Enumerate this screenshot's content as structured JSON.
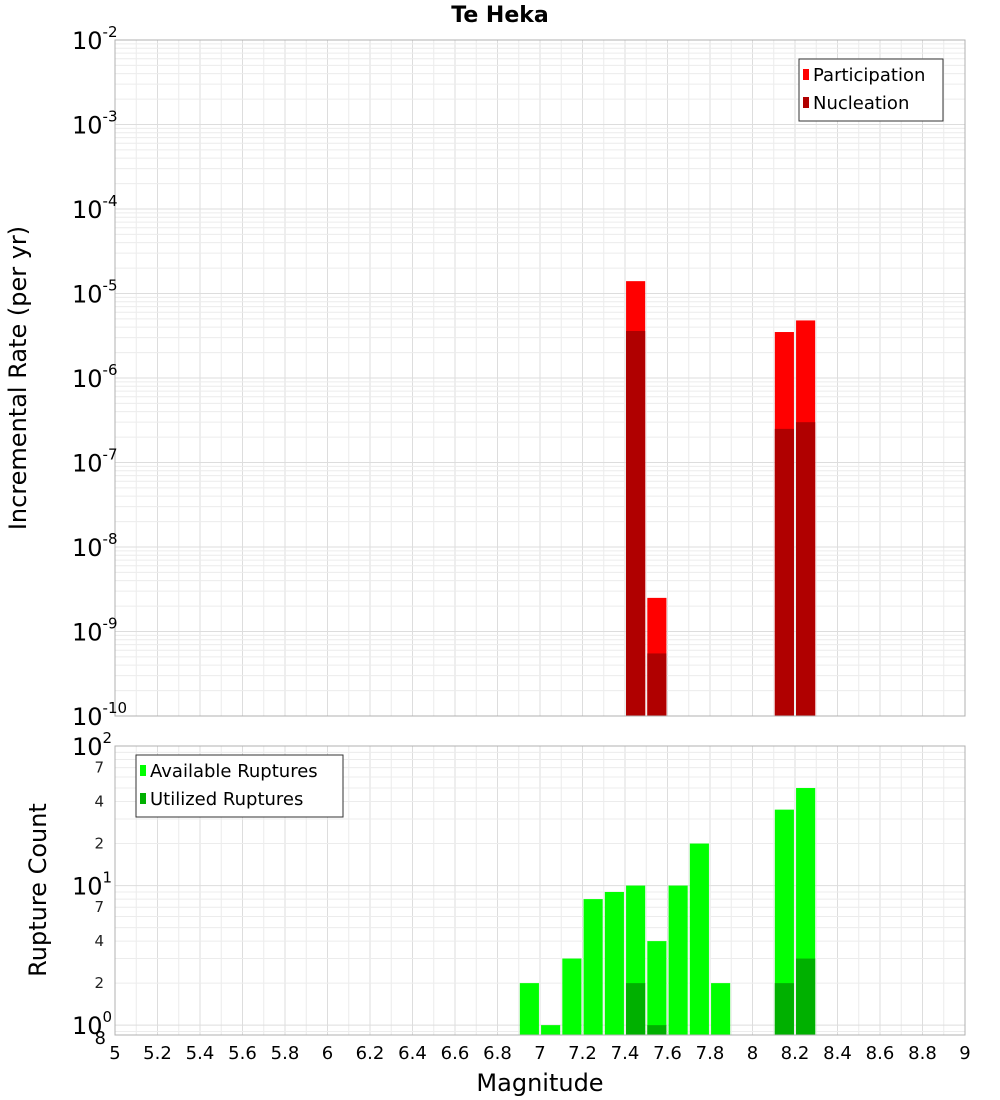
{
  "chart_data": [
    {
      "type": "bar",
      "title": "Te Heka",
      "xlabel": "",
      "ylabel": "Incremental Rate (per yr)",
      "yscale": "log",
      "xlim": [
        5,
        9
      ],
      "ylim": [
        1e-10,
        0.01
      ],
      "y_tick_labels": [
        {
          "base": "10",
          "exp": "-2"
        },
        {
          "base": "10",
          "exp": "-3"
        },
        {
          "base": "10",
          "exp": "-4"
        },
        {
          "base": "10",
          "exp": "-5"
        },
        {
          "base": "10",
          "exp": "-6"
        },
        {
          "base": "10",
          "exp": "-7"
        },
        {
          "base": "10",
          "exp": "-8"
        },
        {
          "base": "10",
          "exp": "-9"
        },
        {
          "base": "10",
          "exp": "-10"
        }
      ],
      "grid": true,
      "legend_position": "top-right",
      "bar_width": 0.09,
      "series": [
        {
          "name": "Participation",
          "color": "#ff0000",
          "points": [
            {
              "x": 7.45,
              "y": 1.4e-05
            },
            {
              "x": 7.55,
              "y": 2.5e-09
            },
            {
              "x": 8.15,
              "y": 3.5e-06
            },
            {
              "x": 8.25,
              "y": 4.8e-06
            }
          ]
        },
        {
          "name": "Nucleation",
          "color": "#b00000",
          "points": [
            {
              "x": 7.45,
              "y": 3.6e-06
            },
            {
              "x": 7.55,
              "y": 5.5e-10
            },
            {
              "x": 8.15,
              "y": 2.5e-07
            },
            {
              "x": 8.25,
              "y": 3e-07
            }
          ]
        }
      ]
    },
    {
      "type": "bar",
      "title": "",
      "xlabel": "Magnitude",
      "ylabel": "Rupture Count",
      "yscale": "log",
      "xlim": [
        5,
        9
      ],
      "ylim": [
        0.85,
        100
      ],
      "x_tick_labels": [
        "5",
        "5.2",
        "5.4",
        "5.6",
        "5.8",
        "6",
        "6.2",
        "6.4",
        "6.6",
        "6.8",
        "7",
        "7.2",
        "7.4",
        "7.6",
        "7.8",
        "8",
        "8.2",
        "8.4",
        "8.6",
        "8.8",
        "9"
      ],
      "y_major_labels": [
        {
          "value": 100,
          "base": "10",
          "exp": "2"
        },
        {
          "value": 10,
          "base": "10",
          "exp": "1"
        },
        {
          "value": 1,
          "base": "10",
          "exp": "0"
        }
      ],
      "y_minor_labels": [
        {
          "value": 70,
          "label": "7"
        },
        {
          "value": 40,
          "label": "4"
        },
        {
          "value": 20,
          "label": "2"
        },
        {
          "value": 7,
          "label": "7"
        },
        {
          "value": 4,
          "label": "4"
        },
        {
          "value": 2,
          "label": "2"
        },
        {
          "value": 0.85,
          "label": "8"
        }
      ],
      "grid": true,
      "legend_position": "top-left",
      "bar_width": 0.09,
      "series": [
        {
          "name": "Available Ruptures",
          "color": "#00ff00",
          "points": [
            {
              "x": 6.95,
              "y": 2
            },
            {
              "x": 7.05,
              "y": 1
            },
            {
              "x": 7.15,
              "y": 3
            },
            {
              "x": 7.25,
              "y": 8
            },
            {
              "x": 7.35,
              "y": 9
            },
            {
              "x": 7.45,
              "y": 10
            },
            {
              "x": 7.55,
              "y": 4
            },
            {
              "x": 7.65,
              "y": 10
            },
            {
              "x": 7.75,
              "y": 20
            },
            {
              "x": 7.85,
              "y": 2
            },
            {
              "x": 8.15,
              "y": 35
            },
            {
              "x": 8.25,
              "y": 50
            }
          ]
        },
        {
          "name": "Utilized Ruptures",
          "color": "#00b000",
          "points": [
            {
              "x": 7.45,
              "y": 2
            },
            {
              "x": 7.55,
              "y": 1
            },
            {
              "x": 8.15,
              "y": 2
            },
            {
              "x": 8.25,
              "y": 3
            }
          ]
        }
      ]
    }
  ]
}
